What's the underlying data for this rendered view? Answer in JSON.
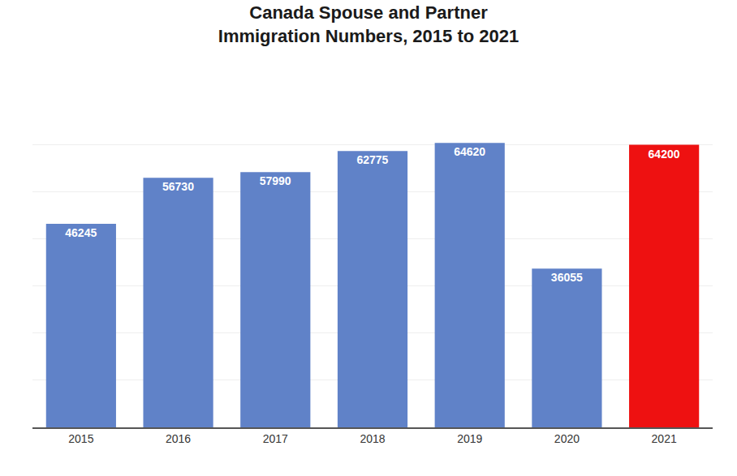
{
  "chart_data": {
    "type": "bar",
    "title": "Canada Spouse and Partner",
    "subtitle": "Immigration Numbers, 2015 to 2021",
    "categories": [
      "2015",
      "2016",
      "2017",
      "2018",
      "2019",
      "2020",
      "2021"
    ],
    "values": [
      46245,
      56730,
      57990,
      62775,
      64620,
      36055,
      64200
    ],
    "colors": [
      "#6082c8",
      "#6082c8",
      "#6082c8",
      "#6082c8",
      "#6082c8",
      "#6082c8",
      "#ee1111"
    ],
    "ylim": [
      0,
      75000
    ],
    "yticks": [
      10714.285714285714,
      21428.571428571428,
      32142.85714285714,
      42857.142857142855,
      53571.42857142857,
      64285.71428571428,
      75000
    ],
    "grid": true,
    "data_labels": true,
    "tick_labels": "x"
  }
}
